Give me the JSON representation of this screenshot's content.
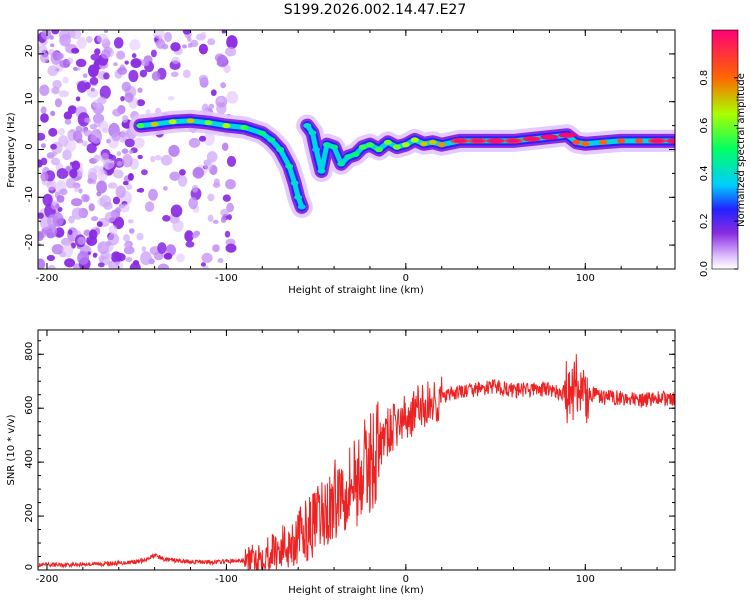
{
  "figure": {
    "title": "S199.2026.002.14.47.E27"
  },
  "chart_data": [
    {
      "type": "heatmap",
      "title": "",
      "xlabel": "Height of straight line (km)",
      "ylabel": "Frequency (Hz)",
      "xlim": [
        -205,
        150
      ],
      "ylim": [
        -25,
        25
      ],
      "xticks": [
        -200,
        -100,
        0,
        100
      ],
      "yticks": [
        -20,
        -10,
        0,
        10,
        20
      ],
      "colorbar": {
        "label": "Normalized spectral amplitude",
        "range": [
          0,
          1
        ],
        "ticks": [
          0.0,
          0.2,
          0.4,
          0.6,
          0.8
        ],
        "tick_labels": [
          "0.0",
          "0.2",
          "0.4",
          "0.6",
          "0.8"
        ]
      },
      "ridge": {
        "description_values": "dominant frequency (Hz) versus height (km)",
        "x": [
          -148,
          -140,
          -130,
          -120,
          -110,
          -100,
          -90,
          -80,
          -75,
          -70,
          -65,
          -62,
          -60,
          -58,
          -55,
          -52,
          -50,
          -47,
          -44,
          -40,
          -36,
          -32,
          -28,
          -24,
          -20,
          -15,
          -10,
          -5,
          0,
          5,
          10,
          15,
          20,
          30,
          40,
          50,
          60,
          70,
          80,
          90,
          95,
          100,
          110,
          120,
          130,
          140,
          150
        ],
        "y": [
          5.0,
          5.3,
          5.8,
          6.0,
          5.6,
          5.0,
          4.6,
          3.4,
          2.0,
          0.0,
          -3.5,
          -7.0,
          -10.0,
          -12.0,
          5.0,
          3.5,
          0.0,
          -4.5,
          1.0,
          0.5,
          -3.0,
          -1.5,
          -1.0,
          0.5,
          1.0,
          0.0,
          1.5,
          0.5,
          1.0,
          2.0,
          1.2,
          1.5,
          1.0,
          1.8,
          1.8,
          1.8,
          1.8,
          2.2,
          2.6,
          3.0,
          1.5,
          1.2,
          1.5,
          1.8,
          1.8,
          1.8,
          1.8
        ],
        "amplitude": [
          0.45,
          0.6,
          0.55,
          0.6,
          0.5,
          0.55,
          0.45,
          0.4,
          0.35,
          0.35,
          0.35,
          0.3,
          0.3,
          0.25,
          0.3,
          0.3,
          0.25,
          0.3,
          0.35,
          0.35,
          0.35,
          0.35,
          0.4,
          0.45,
          0.45,
          0.45,
          0.5,
          0.5,
          0.55,
          0.55,
          0.6,
          0.6,
          0.65,
          0.8,
          0.8,
          0.85,
          0.8,
          0.85,
          0.9,
          0.95,
          0.75,
          0.7,
          0.7,
          0.75,
          0.75,
          0.8,
          0.85
        ]
      },
      "noise_region_x": [
        -205,
        -95
      ]
    },
    {
      "type": "line",
      "title": "",
      "xlabel": "Height of straight line (km)",
      "ylabel": "SNR (10 * v/v)",
      "xlim": [
        -205,
        150
      ],
      "ylim": [
        0,
        890
      ],
      "xticks": [
        -200,
        -100,
        0,
        100
      ],
      "yticks": [
        0,
        200,
        400,
        600,
        800
      ],
      "series": [
        {
          "name": "SNR",
          "color": "#ee2222",
          "x": [
            -205,
            -190,
            -175,
            -160,
            -145,
            -140,
            -135,
            -120,
            -105,
            -90,
            -80,
            -70,
            -62,
            -55,
            -48,
            -42,
            -38,
            -34,
            -30,
            -26,
            -22,
            -18,
            -14,
            -10,
            -5,
            0,
            5,
            10,
            15,
            20,
            25,
            30,
            40,
            50,
            60,
            70,
            80,
            85,
            90,
            95,
            100,
            105,
            110,
            120,
            130,
            140,
            150
          ],
          "y": [
            18,
            20,
            22,
            25,
            35,
            55,
            40,
            30,
            30,
            35,
            55,
            80,
            110,
            150,
            190,
            230,
            280,
            310,
            330,
            340,
            380,
            420,
            470,
            510,
            540,
            560,
            590,
            610,
            620,
            640,
            650,
            660,
            670,
            680,
            665,
            670,
            670,
            655,
            660,
            690,
            650,
            650,
            640,
            640,
            625,
            640,
            630
          ]
        }
      ]
    }
  ]
}
